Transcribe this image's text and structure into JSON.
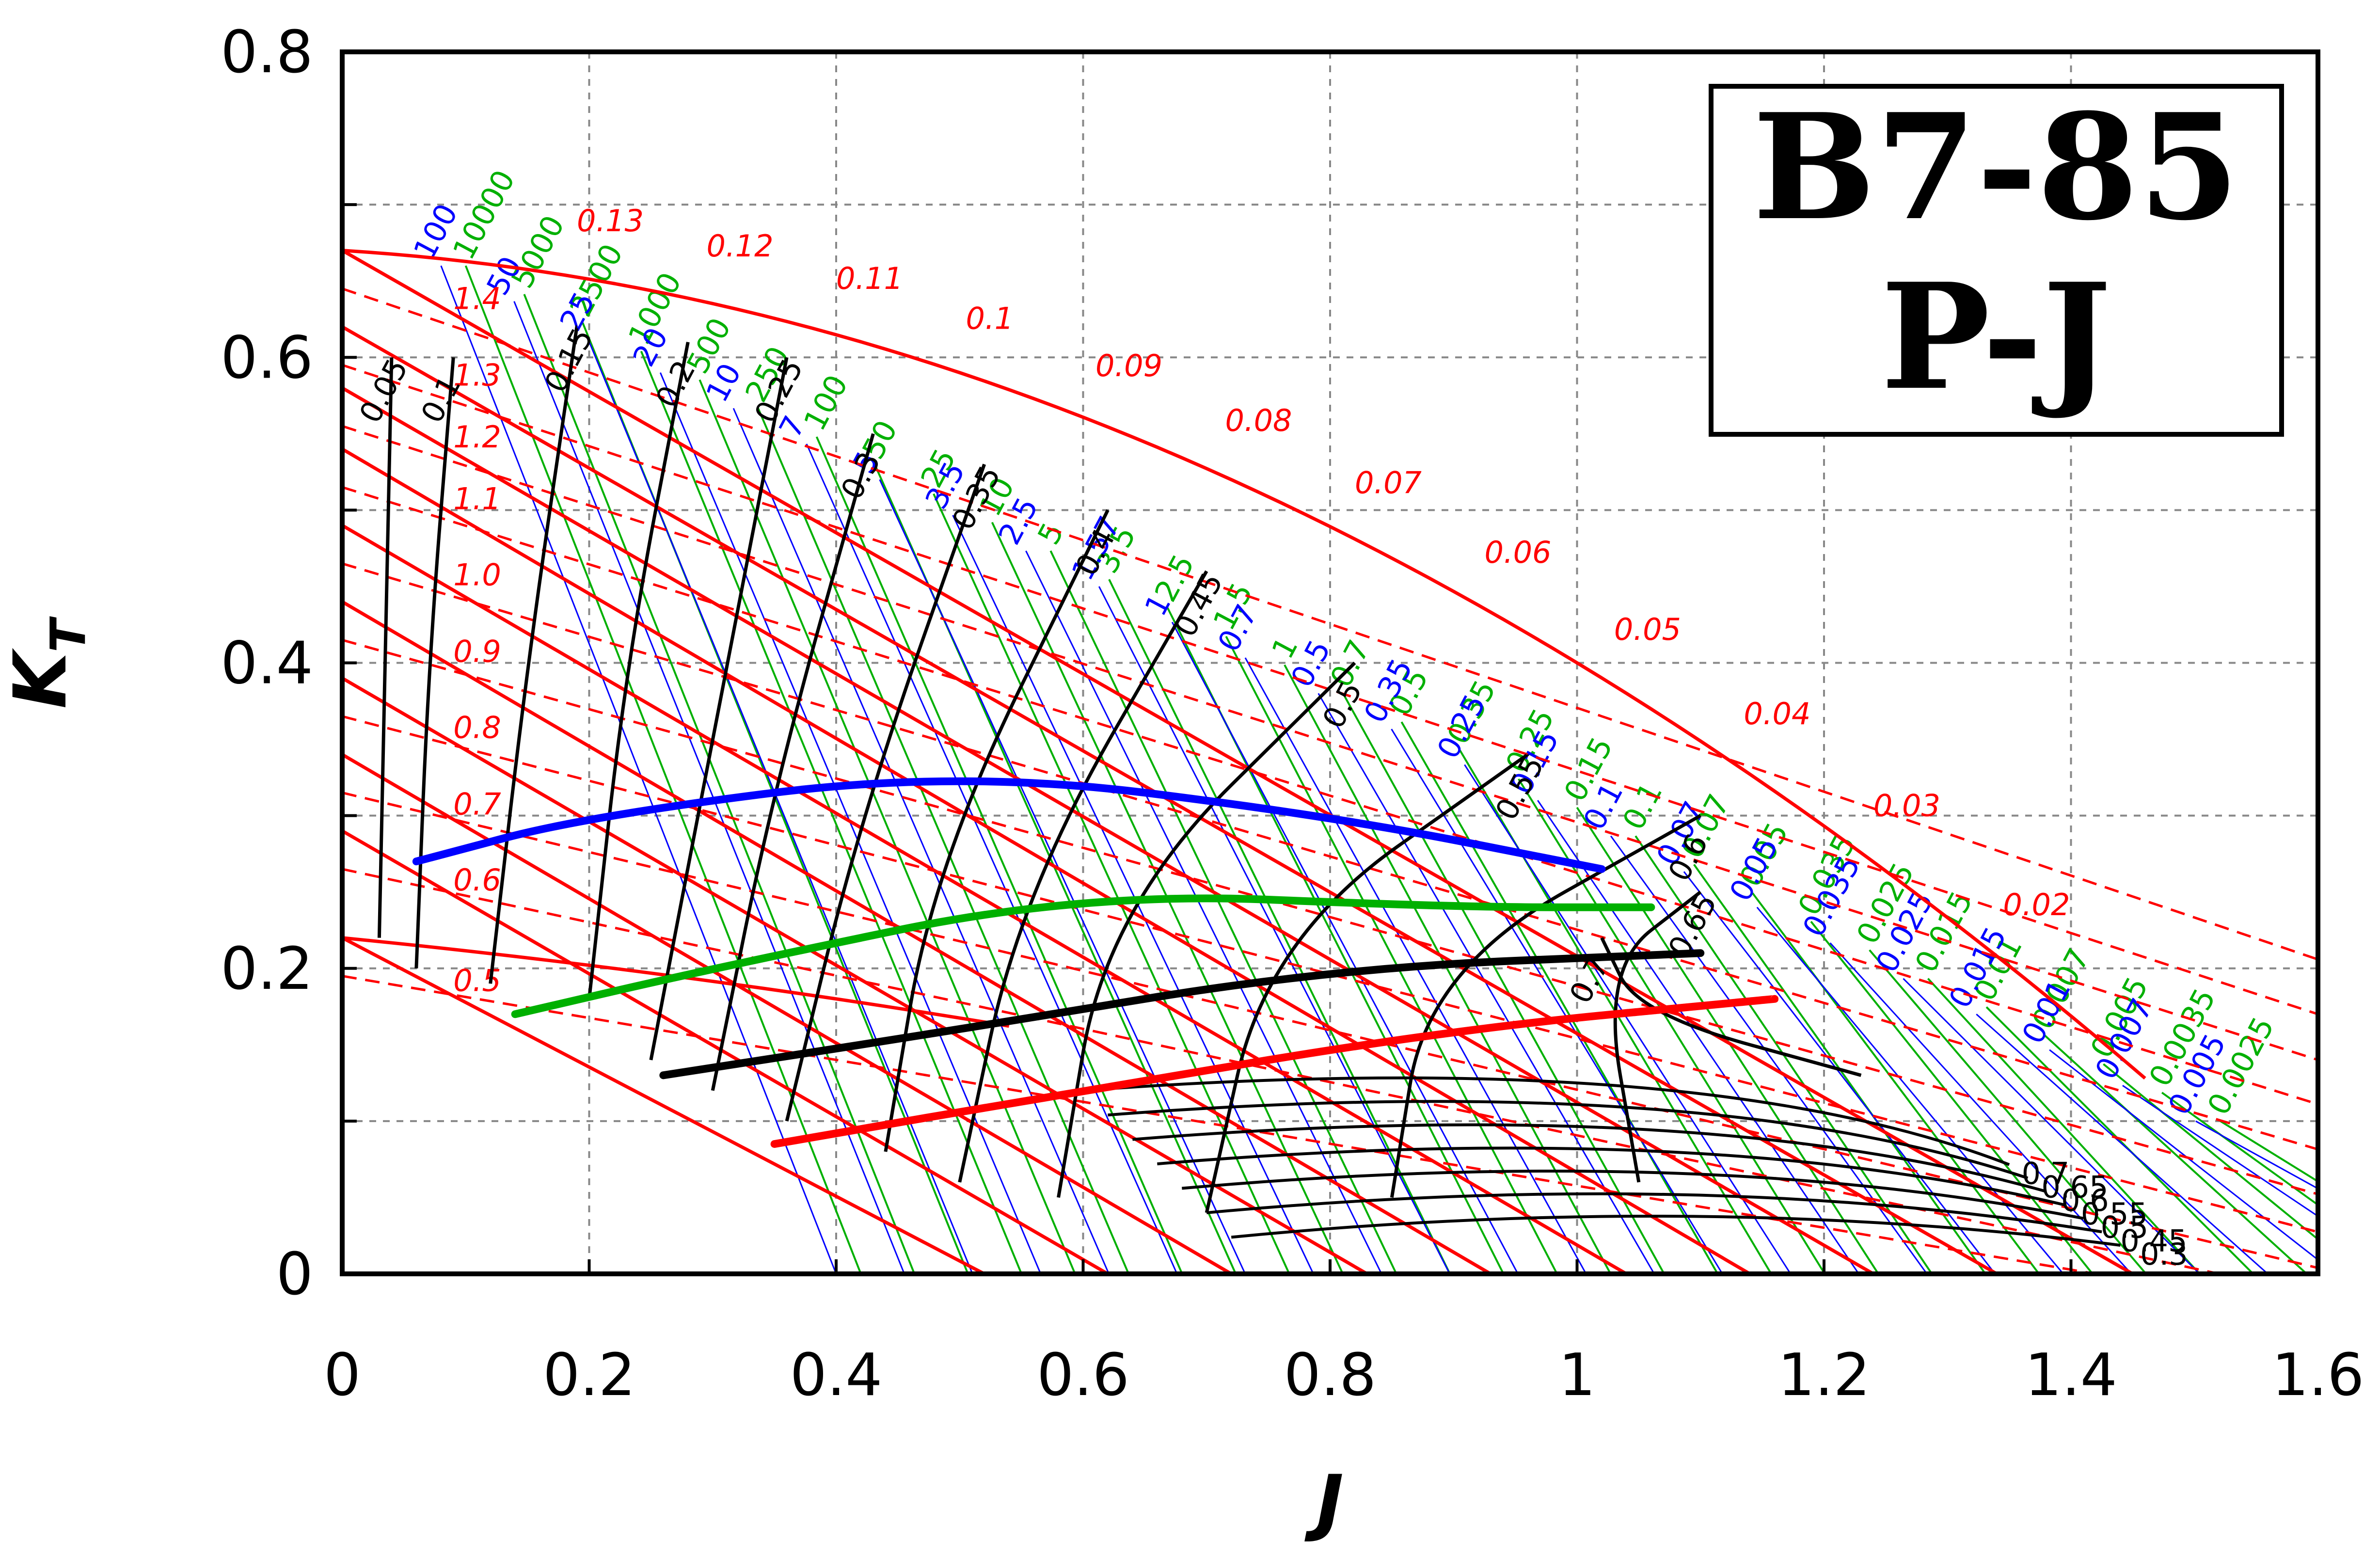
{
  "chart_data": {
    "type": "line",
    "title": "B7-85",
    "subtitle": "P-J",
    "xlabel": "J",
    "ylabel": "K_T",
    "xlim": [
      0,
      1.6
    ],
    "ylim": [
      0,
      0.8
    ],
    "grid": true,
    "xticks": [
      "0",
      "0.2",
      "0.4",
      "0.6",
      "0.8",
      "1",
      "1.2",
      "1.4",
      "1.6"
    ],
    "yticks": [
      "0",
      "0.2",
      "0.4",
      "0.6",
      "0.8"
    ],
    "colors": {
      "pitch_ratio": "#ff0000",
      "efficiency": "#000000",
      "blue_family": "#0000ff",
      "green_family": "#00b000",
      "optimum_blue": "#0000ff",
      "optimum_green": "#00b000",
      "optimum_black": "#000000",
      "optimum_red": "#ff0000"
    },
    "pitch_ratio_series": [
      {
        "label": "0.5",
        "kt_at_j0": 0.22,
        "j_at_kt0": 0.52
      },
      {
        "label": "0.6",
        "kt_at_j0": 0.29,
        "j_at_kt0": 0.62
      },
      {
        "label": "0.7",
        "kt_at_j0": 0.34,
        "j_at_kt0": 0.72
      },
      {
        "label": "0.8",
        "kt_at_j0": 0.39,
        "j_at_kt0": 0.83
      },
      {
        "label": "0.9",
        "kt_at_j0": 0.44,
        "j_at_kt0": 0.93
      },
      {
        "label": "1.0",
        "kt_at_j0": 0.49,
        "j_at_kt0": 1.04
      },
      {
        "label": "1.1",
        "kt_at_j0": 0.54,
        "j_at_kt0": 1.14
      },
      {
        "label": "1.2",
        "kt_at_j0": 0.58,
        "j_at_kt0": 1.24
      },
      {
        "label": "1.3",
        "kt_at_j0": 0.62,
        "j_at_kt0": 1.34
      },
      {
        "label": "1.4",
        "kt_at_j0": 0.67,
        "j_at_kt0": 1.45
      }
    ],
    "blade_area_labels": [
      "0.13",
      "0.12",
      "0.11",
      "0.1",
      "0.09",
      "0.08",
      "0.07",
      "0.06",
      "0.05",
      "0.04",
      "0.03",
      "0.02"
    ],
    "efficiency_series": [
      {
        "label": "0.05",
        "points": [
          [
            0.03,
            0.22
          ],
          [
            0.04,
            0.6
          ]
        ]
      },
      {
        "label": "0.1",
        "points": [
          [
            0.06,
            0.2
          ],
          [
            0.07,
            0.4
          ],
          [
            0.09,
            0.6
          ]
        ]
      },
      {
        "label": "0.15",
        "points": [
          [
            0.12,
            0.19
          ],
          [
            0.15,
            0.4
          ],
          [
            0.19,
            0.62
          ]
        ]
      },
      {
        "label": "0.2",
        "points": [
          [
            0.2,
            0.18
          ],
          [
            0.23,
            0.4
          ],
          [
            0.28,
            0.61
          ]
        ]
      },
      {
        "label": "0.25",
        "points": [
          [
            0.25,
            0.14
          ],
          [
            0.3,
            0.35
          ],
          [
            0.36,
            0.6
          ]
        ]
      },
      {
        "label": "0.3",
        "points": [
          [
            0.3,
            0.12
          ],
          [
            0.35,
            0.32
          ],
          [
            0.43,
            0.55
          ]
        ]
      },
      {
        "label": "0.35",
        "points": [
          [
            0.36,
            0.1
          ],
          [
            0.42,
            0.3
          ],
          [
            0.52,
            0.53
          ]
        ]
      },
      {
        "label": "0.4",
        "points": [
          [
            0.44,
            0.08
          ],
          [
            0.48,
            0.27
          ],
          [
            0.62,
            0.5
          ]
        ]
      },
      {
        "label": "0.45",
        "points": [
          [
            0.5,
            0.06
          ],
          [
            0.55,
            0.25
          ],
          [
            0.7,
            0.46
          ]
        ]
      },
      {
        "label": "0.5",
        "points": [
          [
            0.58,
            0.05
          ],
          [
            0.62,
            0.24
          ],
          [
            0.82,
            0.4
          ]
        ]
      },
      {
        "label": "0.55",
        "points": [
          [
            0.7,
            0.04
          ],
          [
            0.75,
            0.22
          ],
          [
            0.96,
            0.34
          ]
        ]
      },
      {
        "label": "0.6",
        "points": [
          [
            0.85,
            0.05
          ],
          [
            0.88,
            0.2
          ],
          [
            1.1,
            0.3
          ]
        ]
      },
      {
        "label": "0.65",
        "points": [
          [
            1.05,
            0.06
          ],
          [
            1.02,
            0.2
          ],
          [
            1.1,
            0.25
          ]
        ]
      },
      {
        "label": "0.7",
        "points": [
          [
            1.23,
            0.13
          ],
          [
            1.05,
            0.17
          ],
          [
            1.02,
            0.22
          ]
        ]
      }
    ],
    "efficiency_end_labels": [
      "0.7",
      "0.65",
      "0.6",
      "0.55",
      "0.5",
      "0.45",
      "0.3"
    ],
    "blue_labels": [
      "100",
      "50",
      "25",
      "20",
      "10",
      "7",
      "5",
      "3.5",
      "2.5",
      "1.57",
      "1",
      "0.7",
      "0.5",
      "0.35",
      "0.25",
      "0.15",
      "0.1",
      "0.07",
      "0.05",
      "0.035",
      "0.025",
      "0.015",
      "0.01",
      "0.007",
      "0.005"
    ],
    "green_labels": [
      "10000",
      "5000",
      "2500",
      "1000",
      "500",
      "250",
      "100",
      "50",
      "25",
      "10",
      "5",
      "3.5",
      "2.5",
      "1.5",
      "1",
      "0.7",
      "0.5",
      "0.35",
      "0.25",
      "0.15",
      "0.1",
      "0.07",
      "0.05",
      "0.035",
      "0.025",
      "0.015",
      "0.01",
      "0.007",
      "0.005",
      "0.0035",
      "0.0025"
    ],
    "optimum_curves": [
      {
        "color": "blue",
        "points": [
          [
            0.06,
            0.27
          ],
          [
            0.2,
            0.3
          ],
          [
            0.5,
            0.33
          ],
          [
            0.8,
            0.3
          ],
          [
            1.02,
            0.265
          ]
        ]
      },
      {
        "color": "green",
        "points": [
          [
            0.14,
            0.17
          ],
          [
            0.3,
            0.2
          ],
          [
            0.6,
            0.25
          ],
          [
            0.9,
            0.24
          ],
          [
            1.06,
            0.24
          ]
        ]
      },
      {
        "color": "black",
        "points": [
          [
            0.26,
            0.13
          ],
          [
            0.5,
            0.16
          ],
          [
            0.8,
            0.2
          ],
          [
            1.1,
            0.21
          ]
        ]
      },
      {
        "color": "red",
        "points": [
          [
            0.35,
            0.085
          ],
          [
            0.6,
            0.12
          ],
          [
            0.9,
            0.16
          ],
          [
            1.16,
            0.18
          ]
        ]
      }
    ]
  }
}
